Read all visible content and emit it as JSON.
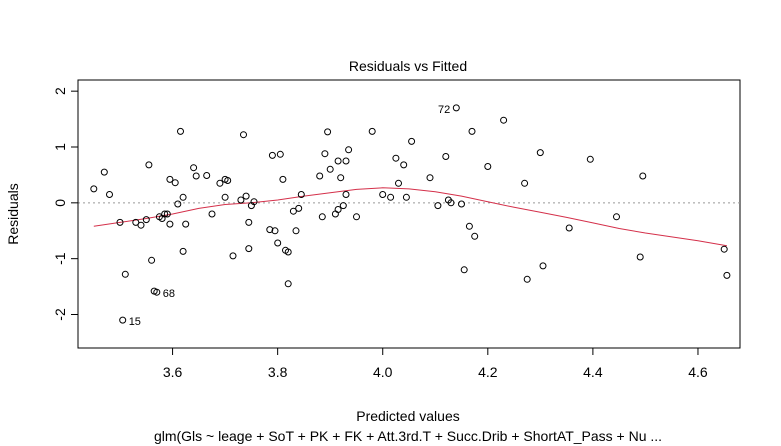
{
  "chart_data": {
    "type": "scatter",
    "title": "Residuals vs Fitted",
    "xlabel": "Predicted values",
    "ylabel": "Residuals",
    "subtitle": "glm(Gls ~ leage + SoT + PK + FK + Att.3rd.T + Succ.Drib + ShortAT_Pass + Nu ...",
    "xlim": [
      3.42,
      4.68
    ],
    "ylim": [
      -2.6,
      2.2
    ],
    "xticks": [
      3.6,
      3.8,
      4.0,
      4.2,
      4.4,
      4.6
    ],
    "xtick_labels": [
      "3.6",
      "3.8",
      "4.0",
      "4.2",
      "4.4",
      "4.6"
    ],
    "yticks": [
      -2,
      -1,
      0,
      1,
      2
    ],
    "ytick_labels": [
      "-2",
      "-1",
      "0",
      "1",
      "2"
    ],
    "reference_line_y": 0,
    "colors": {
      "points": "#000000",
      "smooth": "#d4304a",
      "refline": "#999999"
    },
    "series": [
      {
        "points": [
          {
            "x": 3.45,
            "y": 0.25
          },
          {
            "x": 3.47,
            "y": 0.55
          },
          {
            "x": 3.48,
            "y": 0.15
          },
          {
            "x": 3.5,
            "y": -0.35
          },
          {
            "x": 3.505,
            "y": -2.1,
            "label": "15"
          },
          {
            "x": 3.51,
            "y": -1.28
          },
          {
            "x": 3.53,
            "y": -0.35
          },
          {
            "x": 3.54,
            "y": -0.4
          },
          {
            "x": 3.55,
            "y": -0.3
          },
          {
            "x": 3.555,
            "y": 0.68
          },
          {
            "x": 3.56,
            "y": -1.03
          },
          {
            "x": 3.565,
            "y": -1.58
          },
          {
            "x": 3.57,
            "y": -1.6,
            "label": "68"
          },
          {
            "x": 3.575,
            "y": -0.25
          },
          {
            "x": 3.58,
            "y": -0.28
          },
          {
            "x": 3.585,
            "y": -0.2
          },
          {
            "x": 3.59,
            "y": -0.2
          },
          {
            "x": 3.595,
            "y": -0.38
          },
          {
            "x": 3.595,
            "y": 0.42
          },
          {
            "x": 3.605,
            "y": 0.36
          },
          {
            "x": 3.61,
            "y": -0.02
          },
          {
            "x": 3.615,
            "y": 1.28
          },
          {
            "x": 3.62,
            "y": 0.1
          },
          {
            "x": 3.62,
            "y": -0.87
          },
          {
            "x": 3.625,
            "y": -0.38
          },
          {
            "x": 3.64,
            "y": 0.63
          },
          {
            "x": 3.645,
            "y": 0.48
          },
          {
            "x": 3.665,
            "y": 0.49
          },
          {
            "x": 3.675,
            "y": -0.2
          },
          {
            "x": 3.69,
            "y": 0.35
          },
          {
            "x": 3.7,
            "y": 0.42
          },
          {
            "x": 3.705,
            "y": 0.4
          },
          {
            "x": 3.7,
            "y": 0.1
          },
          {
            "x": 3.715,
            "y": -0.95
          },
          {
            "x": 3.73,
            "y": 0.05
          },
          {
            "x": 3.735,
            "y": 1.22
          },
          {
            "x": 3.74,
            "y": 0.12
          },
          {
            "x": 3.745,
            "y": -0.35
          },
          {
            "x": 3.745,
            "y": -0.82
          },
          {
            "x": 3.75,
            "y": -0.05
          },
          {
            "x": 3.755,
            "y": 0.02
          },
          {
            "x": 3.785,
            "y": -0.48
          },
          {
            "x": 3.79,
            "y": 0.85
          },
          {
            "x": 3.795,
            "y": -0.5
          },
          {
            "x": 3.8,
            "y": -0.72
          },
          {
            "x": 3.805,
            "y": 0.87
          },
          {
            "x": 3.81,
            "y": 0.42
          },
          {
            "x": 3.815,
            "y": -0.85
          },
          {
            "x": 3.82,
            "y": -0.88
          },
          {
            "x": 3.82,
            "y": -1.45
          },
          {
            "x": 3.83,
            "y": -0.15
          },
          {
            "x": 3.835,
            "y": -0.5
          },
          {
            "x": 3.84,
            "y": -0.1
          },
          {
            "x": 3.845,
            "y": 0.15
          },
          {
            "x": 3.88,
            "y": 0.48
          },
          {
            "x": 3.885,
            "y": -0.25
          },
          {
            "x": 3.89,
            "y": 0.88
          },
          {
            "x": 3.895,
            "y": 1.27
          },
          {
            "x": 3.9,
            "y": 0.6
          },
          {
            "x": 3.91,
            "y": -0.2
          },
          {
            "x": 3.915,
            "y": 0.75
          },
          {
            "x": 3.915,
            "y": -0.12
          },
          {
            "x": 3.92,
            "y": 0.45
          },
          {
            "x": 3.925,
            "y": -0.05
          },
          {
            "x": 3.93,
            "y": 0.75
          },
          {
            "x": 3.93,
            "y": 0.15
          },
          {
            "x": 3.935,
            "y": 0.95
          },
          {
            "x": 3.95,
            "y": -0.25
          },
          {
            "x": 3.98,
            "y": 1.28
          },
          {
            "x": 4.0,
            "y": 0.15
          },
          {
            "x": 4.015,
            "y": 0.1
          },
          {
            "x": 4.025,
            "y": 0.8
          },
          {
            "x": 4.03,
            "y": 0.35
          },
          {
            "x": 4.04,
            "y": 0.68
          },
          {
            "x": 4.045,
            "y": 0.1
          },
          {
            "x": 4.055,
            "y": 1.1
          },
          {
            "x": 4.09,
            "y": 0.45
          },
          {
            "x": 4.105,
            "y": -0.05
          },
          {
            "x": 4.12,
            "y": 0.83
          },
          {
            "x": 4.125,
            "y": 0.05
          },
          {
            "x": 4.13,
            "y": 0.0
          },
          {
            "x": 4.14,
            "y": 1.7,
            "label": "72"
          },
          {
            "x": 4.15,
            "y": -0.02
          },
          {
            "x": 4.155,
            "y": -1.2
          },
          {
            "x": 4.165,
            "y": -0.42
          },
          {
            "x": 4.17,
            "y": 1.28
          },
          {
            "x": 4.175,
            "y": -0.6
          },
          {
            "x": 4.2,
            "y": 0.65
          },
          {
            "x": 4.23,
            "y": 1.48
          },
          {
            "x": 4.27,
            "y": 0.35
          },
          {
            "x": 4.275,
            "y": -1.37
          },
          {
            "x": 4.3,
            "y": 0.9
          },
          {
            "x": 4.305,
            "y": -1.13
          },
          {
            "x": 4.355,
            "y": -0.45
          },
          {
            "x": 4.395,
            "y": 0.78
          },
          {
            "x": 4.445,
            "y": -0.25
          },
          {
            "x": 4.49,
            "y": -0.97
          },
          {
            "x": 4.495,
            "y": 0.48
          },
          {
            "x": 4.65,
            "y": -0.83
          },
          {
            "x": 4.655,
            "y": -1.3
          }
        ]
      }
    ],
    "smooth_line": [
      {
        "x": 3.45,
        "y": -0.42
      },
      {
        "x": 3.5,
        "y": -0.35
      },
      {
        "x": 3.55,
        "y": -0.28
      },
      {
        "x": 3.6,
        "y": -0.2
      },
      {
        "x": 3.65,
        "y": -0.1
      },
      {
        "x": 3.7,
        "y": -0.03
      },
      {
        "x": 3.75,
        "y": 0.0
      },
      {
        "x": 3.8,
        "y": 0.05
      },
      {
        "x": 3.85,
        "y": 0.12
      },
      {
        "x": 3.9,
        "y": 0.18
      },
      {
        "x": 3.95,
        "y": 0.24
      },
      {
        "x": 4.0,
        "y": 0.27
      },
      {
        "x": 4.05,
        "y": 0.25
      },
      {
        "x": 4.1,
        "y": 0.2
      },
      {
        "x": 4.15,
        "y": 0.12
      },
      {
        "x": 4.2,
        "y": 0.02
      },
      {
        "x": 4.25,
        "y": -0.08
      },
      {
        "x": 4.3,
        "y": -0.17
      },
      {
        "x": 4.35,
        "y": -0.26
      },
      {
        "x": 4.4,
        "y": -0.36
      },
      {
        "x": 4.45,
        "y": -0.46
      },
      {
        "x": 4.5,
        "y": -0.54
      },
      {
        "x": 4.55,
        "y": -0.61
      },
      {
        "x": 4.6,
        "y": -0.68
      },
      {
        "x": 4.655,
        "y": -0.77
      }
    ]
  }
}
